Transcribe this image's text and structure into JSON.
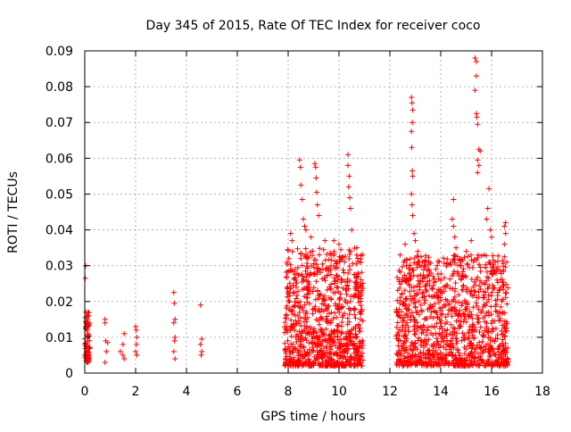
{
  "chart_data": {
    "type": "scatter",
    "title": "Day 345 of 2015, Rate Of TEC Index for receiver coco",
    "xlabel": "GPS time / hours",
    "ylabel": "ROTI / TECUs",
    "xlim": [
      0,
      18
    ],
    "ylim": [
      0,
      0.09
    ],
    "xticks": [
      0,
      2,
      4,
      6,
      8,
      10,
      12,
      14,
      16,
      18
    ],
    "yticks": [
      0,
      0.01,
      0.02,
      0.03,
      0.04,
      0.05,
      0.06,
      0.07,
      0.08,
      0.09
    ],
    "xtick_labels": [
      "0",
      "2",
      "4",
      "6",
      "8",
      "10",
      "12",
      "14",
      "16",
      "18"
    ],
    "ytick_labels": [
      "0",
      "0.01",
      "0.02",
      "0.03",
      "0.04",
      "0.05",
      "0.06",
      "0.07",
      "0.08",
      "0.09"
    ],
    "grid": true,
    "marker": "+",
    "color": "#ff0000",
    "series": [
      {
        "name": "ROTI",
        "points": [
          [
            0.02,
            0.0265
          ],
          [
            0.03,
            0.03
          ],
          [
            0.05,
            0.017
          ],
          [
            0.08,
            0.014
          ],
          [
            0.1,
            0.012
          ],
          [
            0.12,
            0.009
          ],
          [
            0.15,
            0.016
          ],
          [
            0.05,
            0.005
          ],
          [
            0.1,
            0.004
          ],
          [
            0.13,
            0.011
          ],
          [
            0.07,
            0.008
          ],
          [
            0.16,
            0.007
          ],
          [
            0.04,
            0.013
          ],
          [
            0.11,
            0.015
          ],
          [
            0.8,
            0.015
          ],
          [
            0.8,
            0.014
          ],
          [
            0.82,
            0.009
          ],
          [
            0.85,
            0.006
          ],
          [
            0.8,
            0.003
          ],
          [
            0.9,
            0.0085
          ],
          [
            1.4,
            0.006
          ],
          [
            1.5,
            0.008
          ],
          [
            1.55,
            0.011
          ],
          [
            1.5,
            0.005
          ],
          [
            1.55,
            0.004
          ],
          [
            2.0,
            0.013
          ],
          [
            2.02,
            0.012
          ],
          [
            2.05,
            0.01
          ],
          [
            2.0,
            0.006
          ],
          [
            2.05,
            0.005
          ],
          [
            2.03,
            0.008
          ],
          [
            3.5,
            0.0225
          ],
          [
            3.52,
            0.0195
          ],
          [
            3.55,
            0.015
          ],
          [
            3.5,
            0.014
          ],
          [
            3.55,
            0.01
          ],
          [
            3.53,
            0.009
          ],
          [
            3.5,
            0.006
          ],
          [
            3.55,
            0.004
          ],
          [
            4.55,
            0.019
          ],
          [
            4.6,
            0.0095
          ],
          [
            4.55,
            0.008
          ],
          [
            4.6,
            0.006
          ],
          [
            4.58,
            0.005
          ],
          [
            8.45,
            0.0595
          ],
          [
            8.48,
            0.0575
          ],
          [
            8.5,
            0.0525
          ],
          [
            8.55,
            0.0485
          ],
          [
            8.6,
            0.043
          ],
          [
            8.65,
            0.041
          ],
          [
            8.7,
            0.04
          ],
          [
            9.05,
            0.0585
          ],
          [
            9.08,
            0.0575
          ],
          [
            9.1,
            0.0545
          ],
          [
            9.12,
            0.0505
          ],
          [
            9.15,
            0.047
          ],
          [
            9.2,
            0.044
          ],
          [
            10.35,
            0.061
          ],
          [
            10.35,
            0.058
          ],
          [
            10.4,
            0.055
          ],
          [
            10.38,
            0.052
          ],
          [
            10.42,
            0.049
          ],
          [
            10.45,
            0.046
          ],
          [
            10.5,
            0.04
          ],
          [
            8.1,
            0.039
          ],
          [
            8.15,
            0.037
          ],
          [
            8.9,
            0.038
          ],
          [
            9.45,
            0.037
          ],
          [
            9.8,
            0.037
          ],
          [
            10.0,
            0.036
          ],
          [
            10.7,
            0.035
          ],
          [
            10.85,
            0.031
          ],
          [
            12.85,
            0.077
          ],
          [
            12.87,
            0.0755
          ],
          [
            12.9,
            0.0735
          ],
          [
            12.88,
            0.07
          ],
          [
            12.85,
            0.0675
          ],
          [
            12.86,
            0.063
          ],
          [
            12.88,
            0.0565
          ],
          [
            12.9,
            0.055
          ],
          [
            12.85,
            0.05
          ],
          [
            12.87,
            0.047
          ],
          [
            12.9,
            0.044
          ],
          [
            12.95,
            0.039
          ],
          [
            13.0,
            0.037
          ],
          [
            14.5,
            0.0485
          ],
          [
            14.45,
            0.043
          ],
          [
            14.5,
            0.041
          ],
          [
            14.55,
            0.038
          ],
          [
            14.6,
            0.035
          ],
          [
            15.35,
            0.088
          ],
          [
            15.4,
            0.087
          ],
          [
            15.4,
            0.083
          ],
          [
            15.35,
            0.079
          ],
          [
            15.4,
            0.0725
          ],
          [
            15.42,
            0.0715
          ],
          [
            15.45,
            0.0695
          ],
          [
            15.5,
            0.0625
          ],
          [
            15.55,
            0.062
          ],
          [
            15.45,
            0.0595
          ],
          [
            15.5,
            0.058
          ],
          [
            15.45,
            0.056
          ],
          [
            15.9,
            0.0515
          ],
          [
            15.85,
            0.046
          ],
          [
            15.8,
            0.043
          ],
          [
            15.95,
            0.04
          ],
          [
            16.0,
            0.038
          ],
          [
            16.55,
            0.042
          ],
          [
            16.5,
            0.041
          ],
          [
            16.55,
            0.039
          ],
          [
            16.5,
            0.036
          ],
          [
            16.6,
            0.031
          ],
          [
            12.4,
            0.033
          ],
          [
            12.6,
            0.036
          ],
          [
            13.1,
            0.034
          ],
          [
            13.4,
            0.031
          ],
          [
            13.7,
            0.027
          ],
          [
            14.0,
            0.026
          ],
          [
            14.2,
            0.024
          ],
          [
            14.8,
            0.03
          ],
          [
            15.0,
            0.034
          ],
          [
            15.2,
            0.037
          ],
          [
            15.7,
            0.033
          ],
          [
            16.2,
            0.029
          ],
          [
            7.9,
            0.004
          ],
          [
            8.3,
            0.003
          ],
          [
            8.8,
            0.002
          ],
          [
            9.5,
            0.003
          ],
          [
            10.2,
            0.002
          ],
          [
            10.8,
            0.004
          ],
          [
            12.3,
            0.005
          ],
          [
            13.2,
            0.003
          ],
          [
            13.9,
            0.0025
          ],
          [
            14.6,
            0.004
          ],
          [
            15.3,
            0.003
          ],
          [
            16.0,
            0.0025
          ],
          [
            16.6,
            0.003
          ]
        ]
      }
    ],
    "point_clusters": [
      {
        "x_range": [
          0.0,
          0.2
        ],
        "y_range": [
          0.003,
          0.017
        ],
        "count": 60
      },
      {
        "x_range": [
          7.85,
          10.95
        ],
        "y_range": [
          0.002,
          0.035
        ],
        "count": 900
      },
      {
        "x_range": [
          12.25,
          16.65
        ],
        "y_range": [
          0.002,
          0.033
        ],
        "count": 1100
      }
    ]
  }
}
